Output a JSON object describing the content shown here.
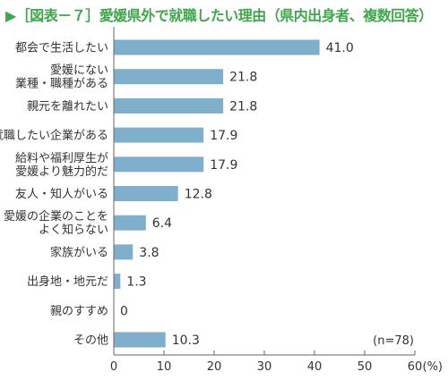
{
  "chart_data": {
    "type": "bar",
    "orientation": "horizontal",
    "title": "▶［図表－７］愛媛県外で就職したい理由（県内出身者、複数回答）",
    "categories": [
      [
        "都会で生活したい"
      ],
      [
        "愛媛にない",
        "業種・職種がある"
      ],
      [
        "親元を離れたい"
      ],
      [
        "就職したい企業がある"
      ],
      [
        "給料や福利厚生が",
        "愛媛より魅力的だ"
      ],
      [
        "友人・知人がいる"
      ],
      [
        "愛媛の企業のことを",
        "よく知らない"
      ],
      [
        "家族がいる"
      ],
      [
        "出身地・地元だ"
      ],
      [
        "親のすすめ"
      ],
      [
        "その他"
      ]
    ],
    "values": [
      41.0,
      21.8,
      21.8,
      17.9,
      17.9,
      12.8,
      6.4,
      3.8,
      1.3,
      0,
      10.3
    ],
    "value_labels": [
      "41.0",
      "21.8",
      "21.8",
      "17.9",
      "17.9",
      "12.8",
      "6.4",
      "3.8",
      "1.3",
      "0",
      "10.3"
    ],
    "x_ticks": [
      "0",
      "10",
      "20",
      "30",
      "40",
      "50",
      "60"
    ],
    "x_unit": "(%)",
    "xlim": [
      0,
      60
    ],
    "note": "(n=78)",
    "colors": {
      "bar": "#7fafcb",
      "title": "#3fa64b",
      "axis": "#666666",
      "text": "#333333"
    }
  }
}
